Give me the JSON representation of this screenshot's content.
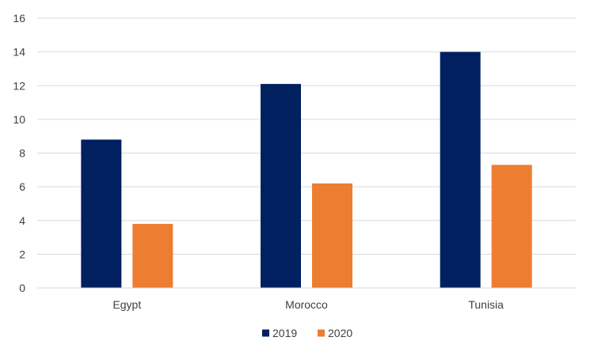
{
  "chart_data": {
    "type": "bar",
    "categories": [
      "Egypt",
      "Morocco",
      "Tunisia"
    ],
    "series": [
      {
        "name": "2019",
        "color": "#002060",
        "values": [
          8.8,
          12.1,
          14.0
        ]
      },
      {
        "name": "2020",
        "color": "#ED7D31",
        "values": [
          3.8,
          6.2,
          7.3
        ]
      }
    ],
    "ylim": [
      0,
      16
    ],
    "yticks": [
      0,
      2,
      4,
      6,
      8,
      10,
      12,
      14,
      16
    ],
    "grid": true,
    "gridline_color": "#D9D9D9",
    "legend_position": "bottom",
    "title": "",
    "xlabel": "",
    "ylabel": ""
  }
}
